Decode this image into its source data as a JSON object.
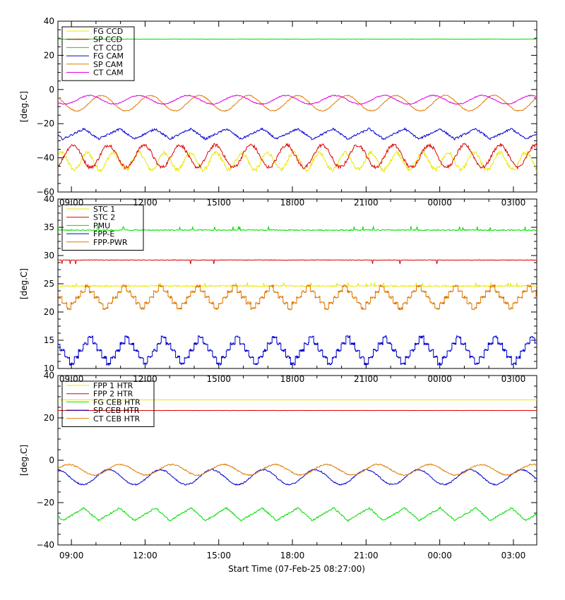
{
  "figure": {
    "xlabel": "Start Time (07-Feb-25 08:27:00)",
    "x_tick_labels": [
      "09:00",
      "12:00",
      "15:00",
      "18:00",
      "21:00",
      "00:00",
      "03:00"
    ],
    "colors": {
      "yellow": "#e8e800",
      "red": "#dd0000",
      "green": "#00dd00",
      "blue": "#0000cc",
      "orange": "#e07800",
      "magenta": "#e000e0"
    }
  },
  "chart_data": [
    {
      "type": "line",
      "ylabel": "[deg.C]",
      "ylim": [
        -60,
        40
      ],
      "y_ticks": [
        "40",
        "20",
        "0",
        "−20",
        "−40",
        "−60"
      ],
      "xlim_hours": [
        8.45,
        27.95
      ],
      "x_ticks_hours": [
        9,
        12,
        15,
        18,
        21,
        24,
        27
      ],
      "legend": "top-left",
      "series": [
        {
          "name": "FG CCD",
          "color": "#e8e800",
          "pattern": "sine",
          "mean": -42,
          "amp": 5,
          "period_h": 1.05,
          "phase": 0.4,
          "noise": 1.2
        },
        {
          "name": "SP CCD",
          "color": "#dd0000",
          "pattern": "sine",
          "mean": -39,
          "amp": 6.5,
          "period_h": 1.45,
          "phase": 0.0,
          "noise": 1.0,
          "clip_low": -46
        },
        {
          "name": "CT CCD",
          "color": "#00dd00",
          "pattern": "flat",
          "mean": 29.5,
          "amp": 0,
          "noise": 0.1
        },
        {
          "name": "FG CAM",
          "color": "#0000cc",
          "pattern": "saw",
          "mean": -26,
          "amp": 3,
          "period_h": 1.45,
          "phase": 0.2,
          "noise": 0.6
        },
        {
          "name": "SP CAM",
          "color": "#e07800",
          "pattern": "sine",
          "mean": -8,
          "amp": 4.5,
          "period_h": 2.0,
          "phase": 0.9,
          "noise": 0.3
        },
        {
          "name": "CT CAM",
          "color": "#e000e0",
          "pattern": "sine",
          "mean": -6,
          "amp": 2.5,
          "period_h": 2.0,
          "phase": 2.4,
          "noise": 0.3
        }
      ]
    },
    {
      "type": "line",
      "ylabel": "[deg.C]",
      "ylim": [
        10,
        40
      ],
      "y_ticks": [
        "40",
        "35",
        "30",
        "25",
        "20",
        "15",
        "10"
      ],
      "xlim_hours": [
        8.45,
        27.95
      ],
      "x_ticks_hours": [
        9,
        12,
        15,
        18,
        21,
        24,
        27
      ],
      "legend": "top-left",
      "series": [
        {
          "name": "STC 1",
          "color": "#e8e800",
          "pattern": "flat",
          "mean": 24.6,
          "amp": 0,
          "noise": 0.15,
          "spikes": 0.5
        },
        {
          "name": "STC 2",
          "color": "#dd0000",
          "pattern": "flat",
          "mean": 29.2,
          "amp": 0,
          "noise": 0.05,
          "dips": 0.7
        },
        {
          "name": "PMU",
          "color": "#00dd00",
          "pattern": "flat",
          "mean": 34.5,
          "amp": 0,
          "noise": 0.1,
          "spikes": 0.6
        },
        {
          "name": "FPP-E",
          "color": "#0000cc",
          "pattern": "step",
          "mean": 13.2,
          "amp": 2.4,
          "period_h": 1.5,
          "phase": 0.0,
          "noise": 0.2
        },
        {
          "name": "FPP-PWR",
          "color": "#e07800",
          "pattern": "step",
          "mean": 22.6,
          "amp": 2.0,
          "period_h": 1.5,
          "phase": 0.5,
          "noise": 0.2
        }
      ]
    },
    {
      "type": "line",
      "ylabel": "[deg.C]",
      "ylim": [
        -40,
        40
      ],
      "y_ticks": [
        "40",
        "20",
        "0",
        "−20",
        "−40"
      ],
      "xlim_hours": [
        8.45,
        27.95
      ],
      "x_ticks_hours": [
        9,
        12,
        15,
        18,
        21,
        24,
        27
      ],
      "legend": "top-left",
      "series": [
        {
          "name": "FPP 1 HTR",
          "color": "#e8e800",
          "pattern": "flat",
          "mean": 28.5,
          "amp": 0,
          "noise": 0
        },
        {
          "name": "FPP 2 HTR",
          "color": "#dd0000",
          "pattern": "flat",
          "mean": 23.5,
          "amp": 0,
          "noise": 0.05
        },
        {
          "name": "FG CEB HTR",
          "color": "#00dd00",
          "pattern": "saw",
          "mean": -25.5,
          "amp": 3,
          "period_h": 1.45,
          "phase": 0.2,
          "noise": 0.4
        },
        {
          "name": "SP CEB HTR",
          "color": "#0000cc",
          "pattern": "sine",
          "mean": -8,
          "amp": 3.5,
          "period_h": 2.1,
          "phase": 1.5,
          "noise": 0.3
        },
        {
          "name": "CT CEB HTR",
          "color": "#e07800",
          "pattern": "sine",
          "mean": -4.5,
          "amp": 2.5,
          "period_h": 2.1,
          "phase": 0.1,
          "noise": 0.3
        }
      ]
    }
  ]
}
